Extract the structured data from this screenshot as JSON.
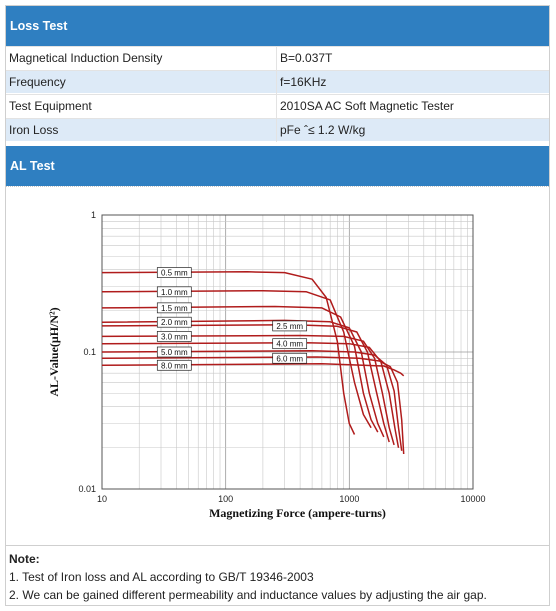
{
  "loss_test": {
    "header": "Loss Test",
    "rows": [
      {
        "label": "Magnetical Induction Density",
        "value": "B=0.037T"
      },
      {
        "label": "Frequency",
        "value": "f=16KHz"
      },
      {
        "label": "Test Equipment",
        "value": "2010SA AC Soft Magnetic Tester"
      },
      {
        "label": "Iron Loss",
        "value": "pFe ˆ≤ 1.2 W/kg"
      }
    ]
  },
  "al_test": {
    "header": "AL Test"
  },
  "chart_data": {
    "type": "line",
    "xlabel": "Magnetizing Force (ampere-turns)",
    "ylabel": "AL-Value(μH/N²)",
    "x_scale": "log",
    "y_scale": "log",
    "xlim": [
      10,
      10000
    ],
    "ylim": [
      0.01,
      1
    ],
    "x_ticks": [
      "10",
      "100",
      "1000",
      "10000"
    ],
    "y_ticks": [
      "0.01",
      "0.1",
      "1"
    ],
    "grid": true,
    "line_color": "#b01c1c",
    "series": [
      {
        "name": "0.5 mm",
        "x": [
          10,
          150,
          300,
          500,
          650,
          800,
          900,
          1000,
          1100
        ],
        "y": [
          0.38,
          0.385,
          0.38,
          0.34,
          0.25,
          0.12,
          0.05,
          0.03,
          0.025
        ]
      },
      {
        "name": "1.0 mm",
        "x": [
          10,
          200,
          450,
          700,
          900,
          1100,
          1300,
          1500
        ],
        "y": [
          0.275,
          0.28,
          0.275,
          0.24,
          0.14,
          0.06,
          0.035,
          0.028
        ]
      },
      {
        "name": "1.5 mm",
        "x": [
          10,
          250,
          600,
          850,
          1100,
          1300,
          1500,
          1700
        ],
        "y": [
          0.21,
          0.215,
          0.21,
          0.18,
          0.11,
          0.05,
          0.032,
          0.026
        ]
      },
      {
        "name": "2.0 mm",
        "x": [
          10,
          300,
          700,
          1000,
          1250,
          1450,
          1700,
          1900
        ],
        "y": [
          0.165,
          0.17,
          0.166,
          0.15,
          0.1,
          0.05,
          0.03,
          0.024
        ]
      },
      {
        "name": "2.5 mm",
        "x": [
          10,
          350,
          800,
          1150,
          1400,
          1650,
          1900,
          2100
        ],
        "y": [
          0.155,
          0.158,
          0.154,
          0.14,
          0.1,
          0.052,
          0.03,
          0.022
        ]
      },
      {
        "name": "3.0 mm",
        "x": [
          10,
          400,
          900,
          1300,
          1600,
          1850,
          2100,
          2300
        ],
        "y": [
          0.13,
          0.132,
          0.13,
          0.12,
          0.09,
          0.05,
          0.028,
          0.021
        ]
      },
      {
        "name": "4.0 mm",
        "x": [
          10,
          450,
          1000,
          1450,
          1800,
          2100,
          2350,
          2500
        ],
        "y": [
          0.115,
          0.117,
          0.115,
          0.108,
          0.085,
          0.05,
          0.027,
          0.02
        ]
      },
      {
        "name": "5.0 mm",
        "x": [
          10,
          500,
          1100,
          1600,
          2000,
          2300,
          2500,
          2650
        ],
        "y": [
          0.1,
          0.102,
          0.1,
          0.095,
          0.08,
          0.052,
          0.028,
          0.019
        ]
      },
      {
        "name": "6.0 mm",
        "x": [
          10,
          550,
          1200,
          1750,
          2150,
          2450,
          2650,
          2750
        ],
        "y": [
          0.09,
          0.092,
          0.09,
          0.086,
          0.078,
          0.06,
          0.032,
          0.018
        ]
      },
      {
        "name": "8.0 mm",
        "x": [
          10,
          600,
          1300,
          1900,
          2300,
          2600,
          2750
        ],
        "y": [
          0.08,
          0.082,
          0.08,
          0.079,
          0.074,
          0.07,
          0.067
        ]
      }
    ]
  },
  "notes": {
    "title": "Note:",
    "items": [
      "1. Test of Iron loss and AL according to GB/T 19346-2003",
      "2. We can be gained different permeability and inductance values by adjusting the air gap."
    ]
  }
}
